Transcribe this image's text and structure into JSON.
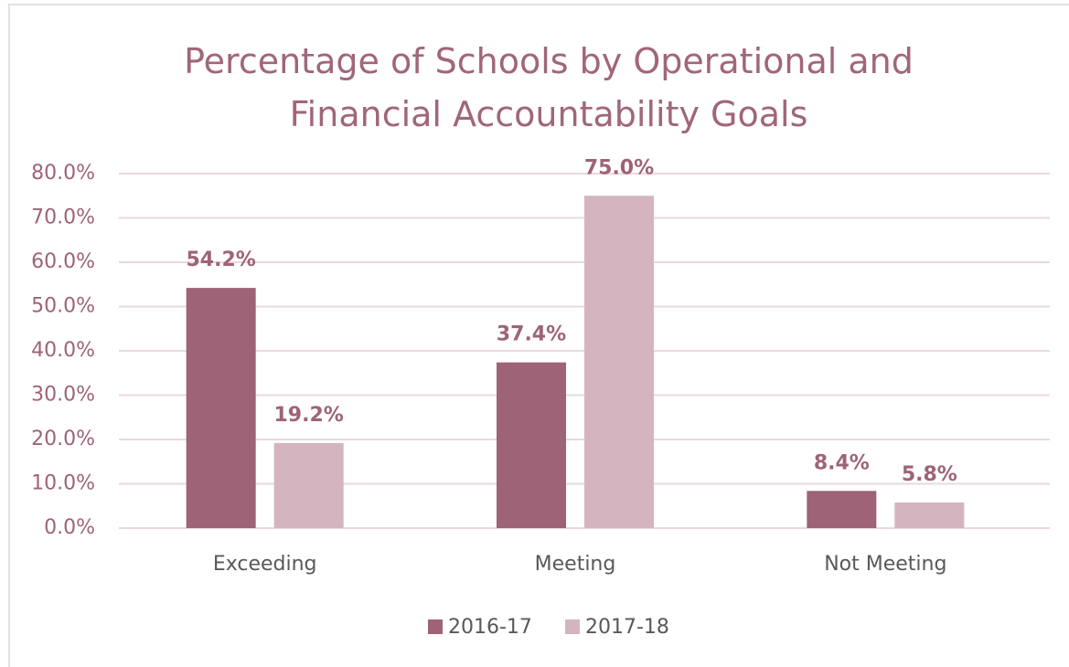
{
  "chart_data": {
    "type": "bar",
    "title": "Percentage of Schools by Operational and Financial Accountability Goals",
    "categories": [
      "Exceeding",
      "Meeting",
      "Not Meeting"
    ],
    "series": [
      {
        "name": "2016-17",
        "color": "#9e6377",
        "values": [
          54.2,
          37.4,
          8.4
        ],
        "value_labels": [
          "54.2%",
          "37.4%",
          "8.4%"
        ]
      },
      {
        "name": "2017-18",
        "color": "#d4b5bf",
        "values": [
          19.2,
          75.0,
          5.8
        ],
        "value_labels": [
          "19.2%",
          "75.0%",
          "5.8%"
        ]
      }
    ],
    "ylim": [
      0,
      80
    ],
    "yticks": [
      {
        "value": 0,
        "label": "0.0%"
      },
      {
        "value": 10,
        "label": "10.0%"
      },
      {
        "value": 20,
        "label": "20.0%"
      },
      {
        "value": 30,
        "label": "30.0%"
      },
      {
        "value": 40,
        "label": "40.0%"
      },
      {
        "value": 50,
        "label": "50.0%"
      },
      {
        "value": 60,
        "label": "60.0%"
      },
      {
        "value": 70,
        "label": "70.0%"
      },
      {
        "value": 80,
        "label": "80.0%"
      }
    ],
    "grid": true,
    "legend": "bottom"
  }
}
